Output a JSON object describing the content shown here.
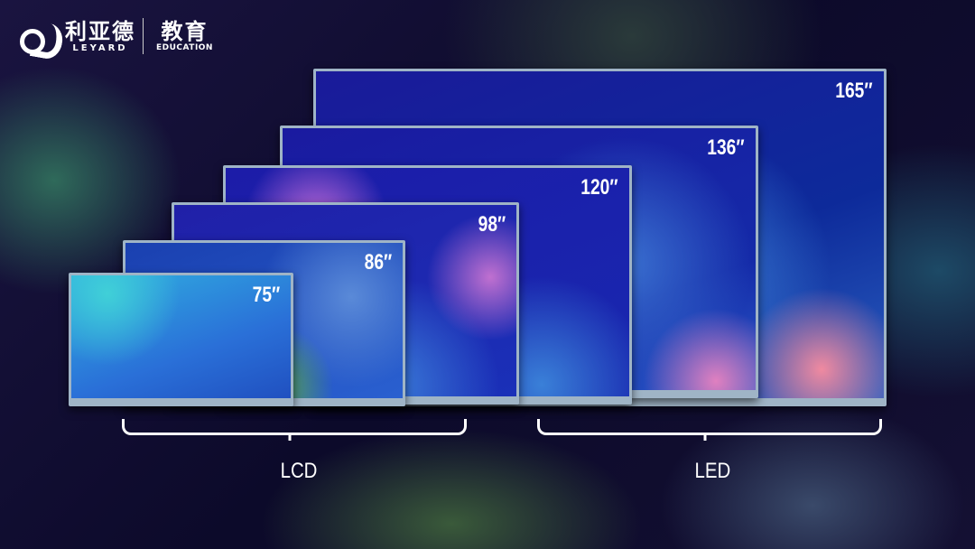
{
  "logo": {
    "brand_cn": "利亚德",
    "brand_en": "LEYARD",
    "division_cn": "教育",
    "division_en": "EDUCATION"
  },
  "screens": [
    {
      "size": "165″",
      "category": "LED"
    },
    {
      "size": "136″",
      "category": "LED"
    },
    {
      "size": "120″",
      "category": "LED"
    },
    {
      "size": "98″",
      "category": "LCD"
    },
    {
      "size": "86″",
      "category": "LCD"
    },
    {
      "size": "75″",
      "category": "LCD"
    }
  ],
  "groups": {
    "lcd": "LCD",
    "led": "LED"
  }
}
